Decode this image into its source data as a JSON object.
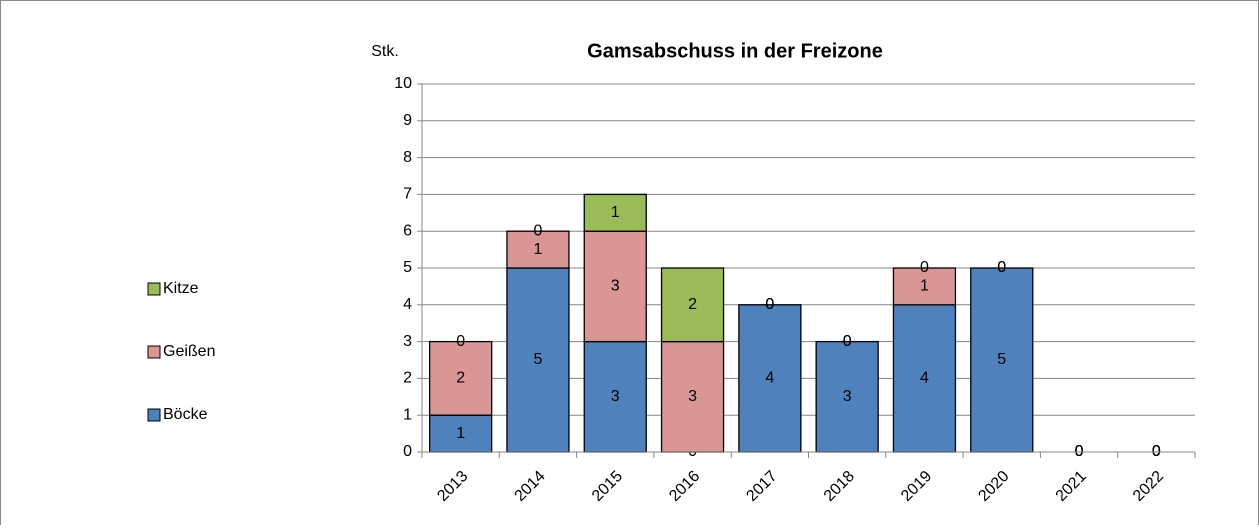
{
  "chart_data": {
    "type": "bar",
    "stacked": true,
    "title": "Gamsabschuss in der Freizone",
    "y_label": "Stk.",
    "categories": [
      "2013",
      "2014",
      "2015",
      "2016",
      "2017",
      "2018",
      "2019",
      "2020",
      "2021",
      "2022"
    ],
    "series": [
      {
        "name": "Böcke",
        "color": "#4f81bd",
        "values": [
          1,
          5,
          3,
          0,
          4,
          3,
          4,
          5,
          0,
          0
        ]
      },
      {
        "name": "Geißen",
        "color": "#d99694",
        "values": [
          2,
          1,
          3,
          3,
          0,
          0,
          1,
          0,
          0,
          0
        ]
      },
      {
        "name": "Kitze",
        "color": "#9bbb59",
        "values": [
          0,
          0,
          1,
          2,
          0,
          0,
          0,
          0,
          0,
          0
        ]
      }
    ],
    "ylim": [
      0,
      10
    ],
    "yticks": [
      0,
      1,
      2,
      3,
      4,
      5,
      6,
      7,
      8,
      9,
      10
    ],
    "grid": true,
    "legend": "left"
  }
}
